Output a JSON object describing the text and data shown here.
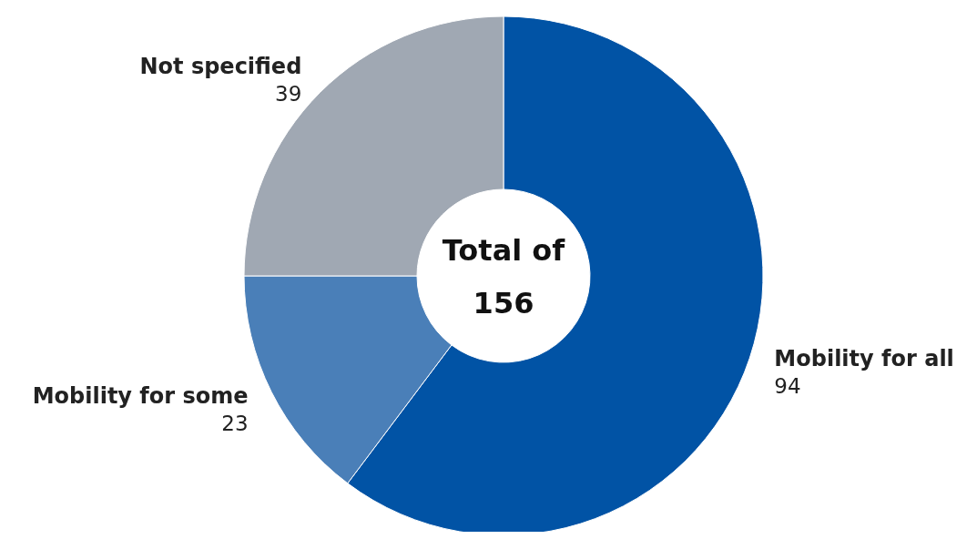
{
  "chart_data": {
    "type": "donut",
    "categories": [
      "Mobility for all",
      "Mobility for some",
      "Not specified"
    ],
    "values": [
      94,
      23,
      39
    ],
    "colors": [
      "#0153a5",
      "#4a7fb8",
      "#a0a8b3"
    ],
    "data_labels": true,
    "annotations": [
      "Total of",
      "156"
    ]
  }
}
